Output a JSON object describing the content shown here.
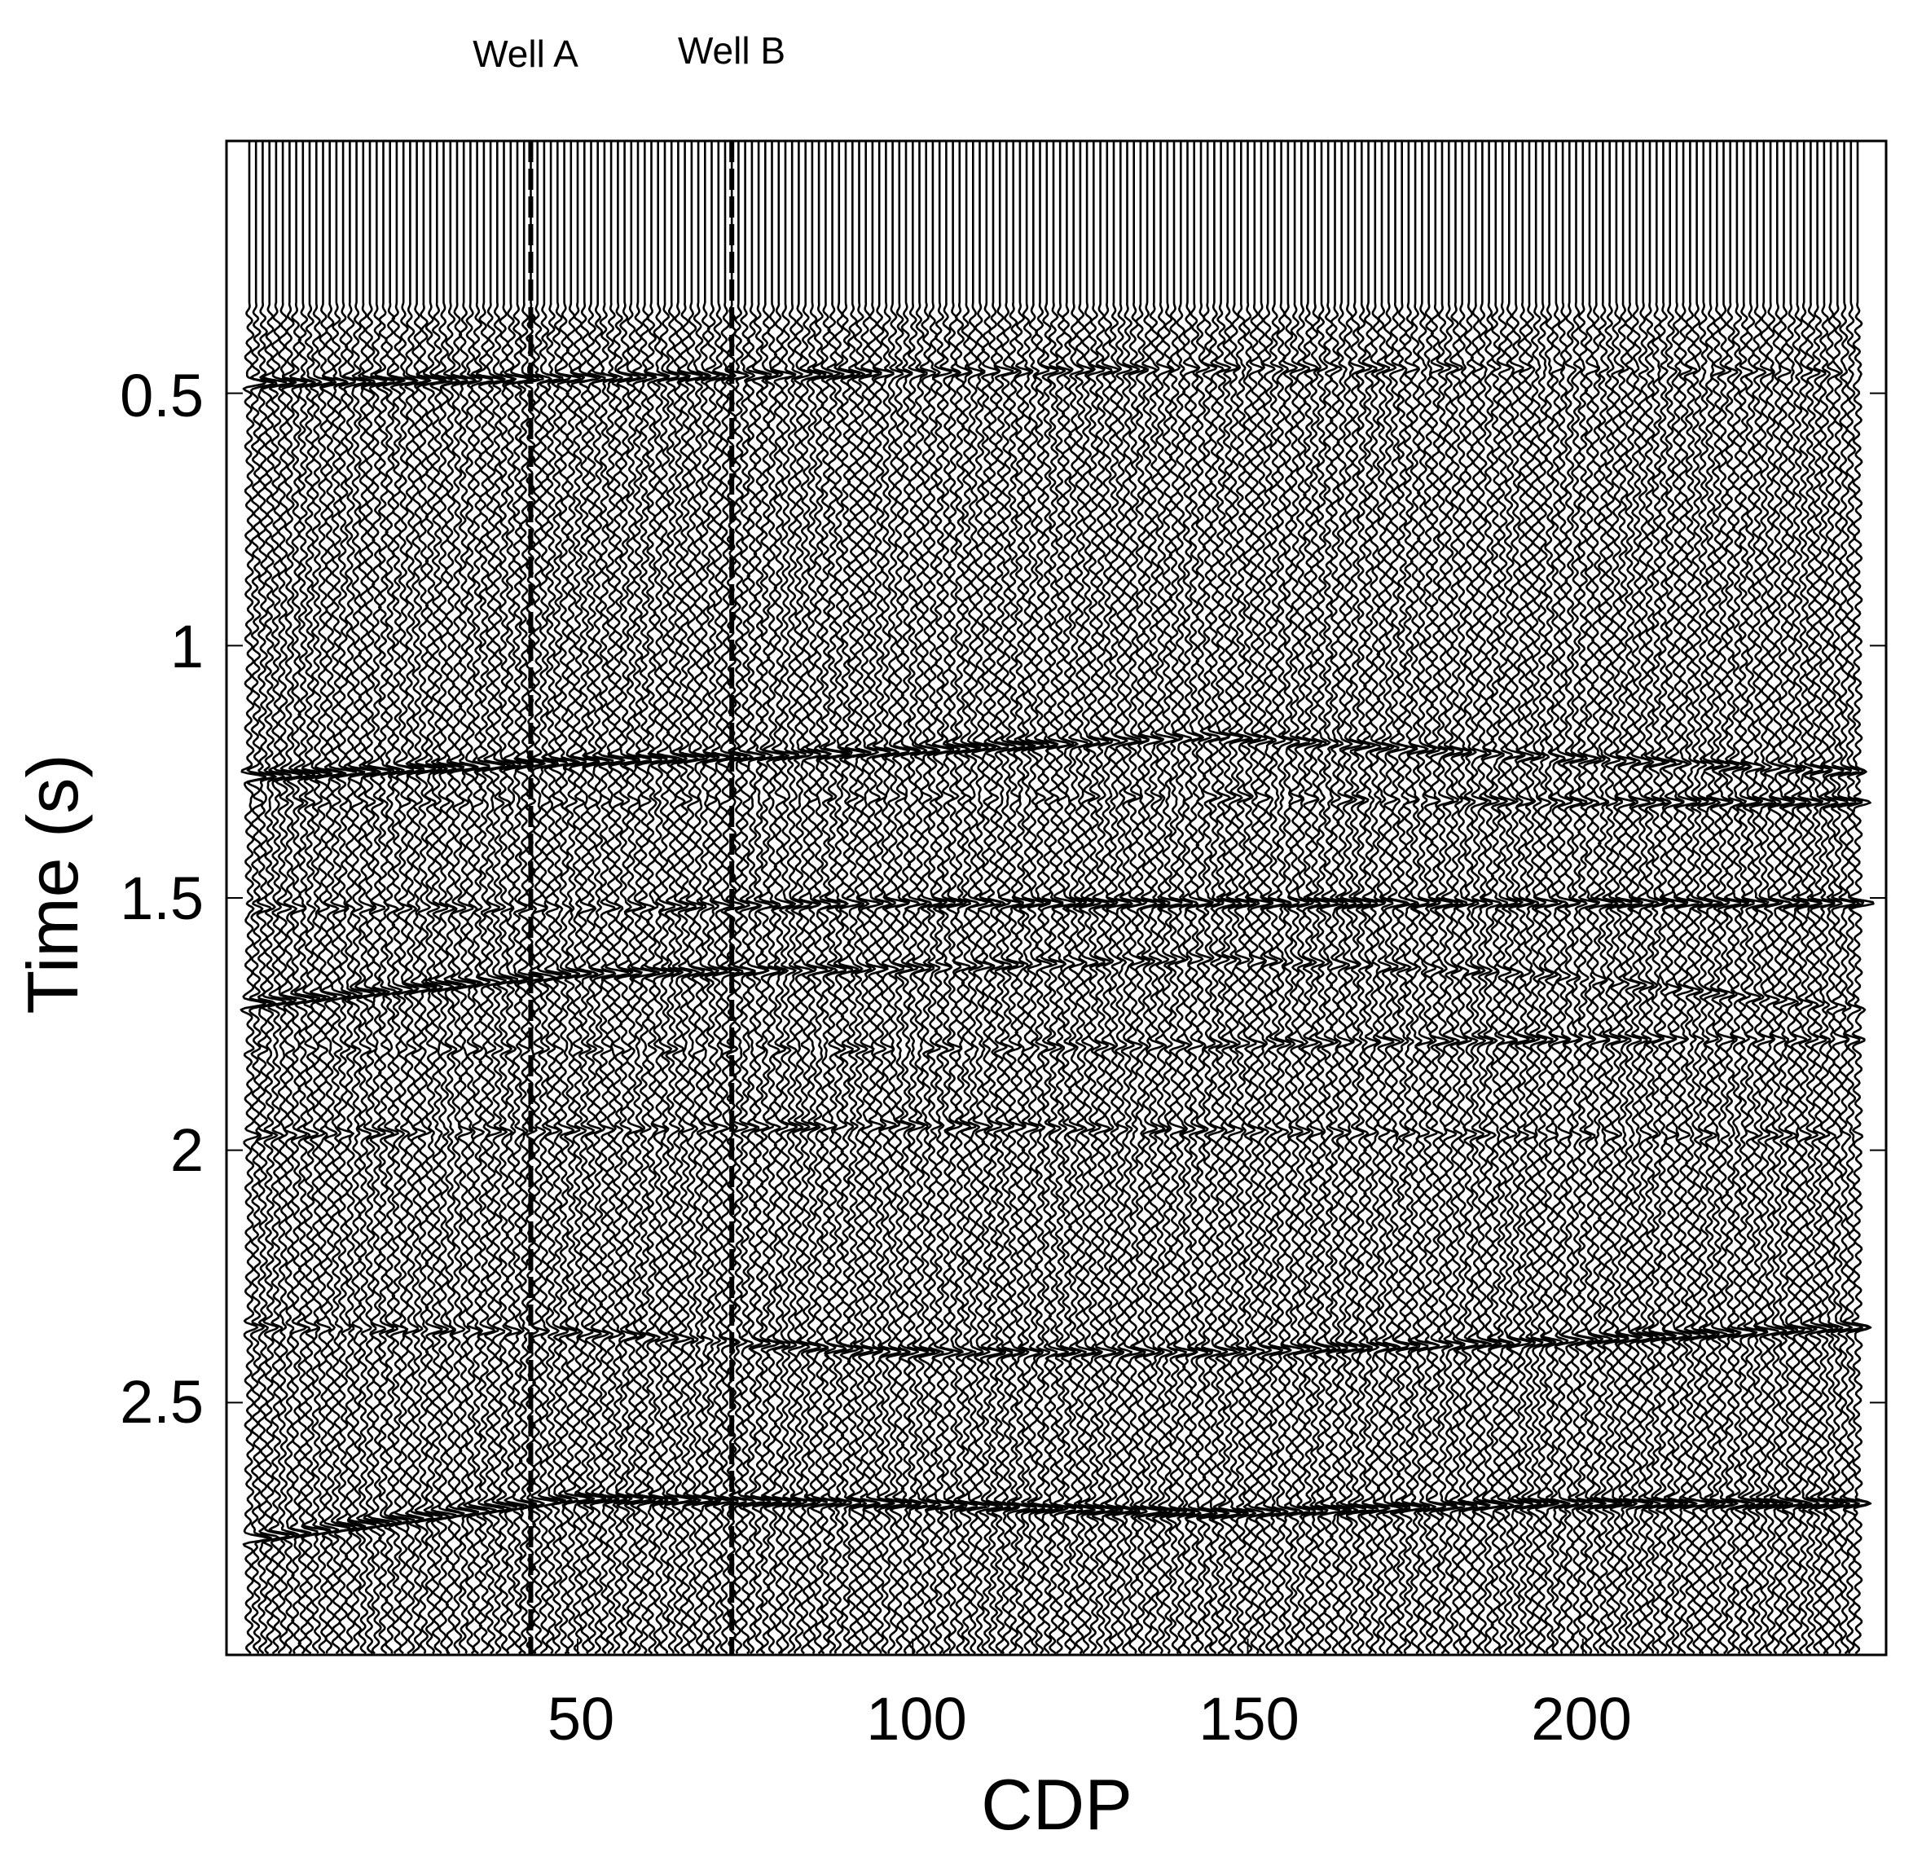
{
  "chart_data": {
    "type": "seismic-wiggle",
    "xlabel": "CDP",
    "ylabel": "Time (s)",
    "xlim": [
      1,
      241
    ],
    "ylim": [
      0,
      3.0
    ],
    "y_reversed": true,
    "x_ticks": [
      50,
      100,
      150,
      200
    ],
    "y_ticks": [
      0.5,
      1,
      1.5,
      2,
      2.5
    ],
    "trace_count": 241,
    "trace_start_time": 0.32,
    "wells": [
      {
        "name": "Well A",
        "cdp": 43
      },
      {
        "name": "Well B",
        "cdp": 73
      }
    ],
    "reflectors": [
      {
        "times": [
          0.48,
          0.47,
          0.46,
          0.45,
          0.45,
          0.46
        ],
        "strength": [
          0.9,
          0.9,
          0.6,
          0.4,
          0.3,
          0.3
        ]
      },
      {
        "times": [
          1.26,
          1.23,
          1.21,
          1.18,
          1.22,
          1.25
        ],
        "strength": [
          1.0,
          1.0,
          0.9,
          0.7,
          0.6,
          0.7
        ]
      },
      {
        "times": [
          1.31,
          1.31,
          1.3,
          1.3,
          1.31,
          1.31
        ],
        "strength": [
          0.2,
          0.2,
          0.2,
          0.3,
          0.5,
          0.9
        ]
      },
      {
        "times": [
          1.52,
          1.52,
          1.51,
          1.51,
          1.51,
          1.51
        ],
        "strength": [
          0.4,
          0.4,
          0.8,
          0.8,
          0.8,
          0.9
        ]
      },
      {
        "times": [
          1.71,
          1.65,
          1.64,
          1.62,
          1.65,
          1.72
        ],
        "strength": [
          0.9,
          0.9,
          0.6,
          0.4,
          0.4,
          0.5
        ]
      },
      {
        "times": [
          1.8,
          1.8,
          1.8,
          1.79,
          1.78,
          1.78
        ],
        "strength": [
          0.2,
          0.2,
          0.3,
          0.4,
          0.6,
          0.4
        ]
      },
      {
        "times": [
          1.97,
          1.96,
          1.95,
          1.96,
          1.97,
          1.97
        ],
        "strength": [
          0.4,
          0.4,
          0.5,
          0.4,
          0.3,
          0.3
        ]
      },
      {
        "times": [
          2.35,
          2.36,
          2.4,
          2.4,
          2.38,
          2.35
        ],
        "strength": [
          0.4,
          0.5,
          0.7,
          0.7,
          0.8,
          0.9
        ]
      },
      {
        "times": [
          2.77,
          2.69,
          2.7,
          2.72,
          2.7,
          2.7
        ],
        "strength": [
          1.0,
          1.0,
          1.0,
          1.0,
          1.0,
          1.0
        ]
      }
    ]
  },
  "figure": {
    "well_a_label": "Well A",
    "well_b_label": "Well B",
    "x_axis_title": "CDP",
    "y_axis_title": "Time (s)",
    "x_tick_labels": [
      "50",
      "100",
      "150",
      "200"
    ],
    "y_tick_labels": [
      "0.5",
      "1",
      "1.5",
      "2",
      "2.5"
    ]
  }
}
